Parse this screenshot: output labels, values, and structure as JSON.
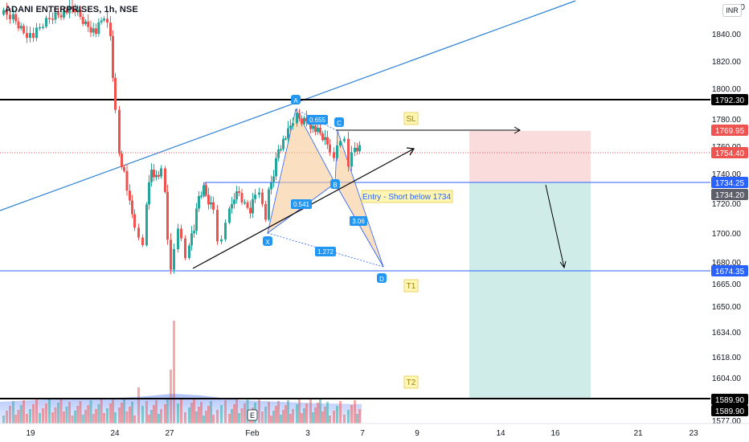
{
  "header": {
    "symbol_title": "ADANI ENTERPRISES, 1h, NSE",
    "currency_button": "INR",
    "top_price_fragment": "1860"
  },
  "price_axis": {
    "ticks": [
      "1840.00",
      "1820.00",
      "1800.00",
      "1780.00",
      "1760.00",
      "1740.00",
      "1720.00",
      "1700.00",
      "1680.00",
      "1665.00",
      "1650.00",
      "1634.00",
      "1618.00",
      "1604.00",
      "1577.00"
    ],
    "tags": [
      {
        "label": "1792.30",
        "style": "black"
      },
      {
        "label": "1769.95",
        "style": "red"
      },
      {
        "label": "1754.40",
        "style": "red"
      },
      {
        "label": "1734.25",
        "style": "blue"
      },
      {
        "label": "1734.20",
        "style": "gray"
      },
      {
        "label": "1674.35",
        "style": "blue"
      },
      {
        "label": "1589.90",
        "style": "black"
      },
      {
        "label": "1589.90",
        "style": "black2"
      }
    ]
  },
  "time_axis": {
    "labels": [
      "19",
      "24",
      "27",
      "Feb",
      "3",
      "7",
      "9",
      "14",
      "16",
      "21",
      "23"
    ]
  },
  "pattern": {
    "points": [
      "X",
      "A",
      "B",
      "C",
      "D"
    ],
    "ratios": [
      "0.655",
      "0.541",
      "3.06",
      "1.272"
    ],
    "entry_label": "Entry - Short below 1734",
    "stop_label": "SL",
    "target1_label": "T1",
    "target2_label": "T2"
  },
  "markers": {
    "earnings": "E"
  },
  "colors": {
    "up": "#26a69a",
    "down": "#ef5350",
    "trend_blue": "#2962ff",
    "harmonic_fill": "#f7c58e",
    "stop_zone": "#f9d1d0",
    "target_zone": "#d1ebe7"
  },
  "chart_data": {
    "type": "candlestick",
    "interval": "1h",
    "x_labels": [
      "19",
      "24",
      "27",
      "Feb",
      "3",
      "7",
      "9",
      "14",
      "16",
      "21",
      "23"
    ],
    "harmonic_pattern_levels": {
      "X": 1698,
      "A": 1792,
      "B": 1738,
      "C": 1772,
      "D": 1674
    },
    "levels": {
      "resistance": 1792.3,
      "stop_loss": 1769.95,
      "last_price": 1754.4,
      "entry": 1734.25,
      "target_1": 1674.35,
      "target_2": 1589.9
    }
  }
}
